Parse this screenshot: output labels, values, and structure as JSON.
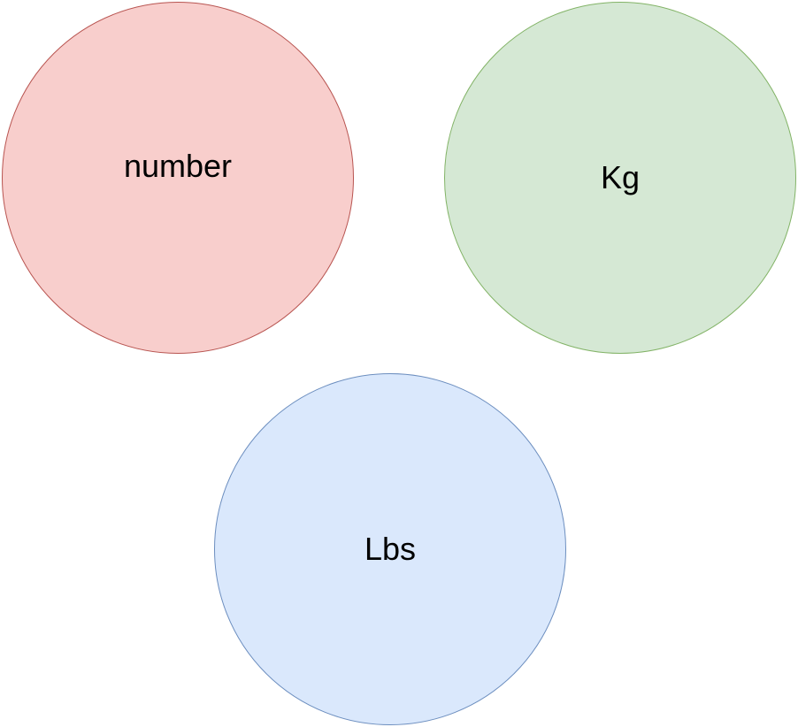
{
  "nodes": [
    {
      "id": "number",
      "label": "number",
      "fill": "#f8cecc",
      "stroke": "#b85450"
    },
    {
      "id": "kg",
      "label": "Kg",
      "fill": "#d5e8d4",
      "stroke": "#82b366"
    },
    {
      "id": "lbs",
      "label": "Lbs",
      "fill": "#dae8fc",
      "stroke": "#6c8ebf"
    }
  ]
}
